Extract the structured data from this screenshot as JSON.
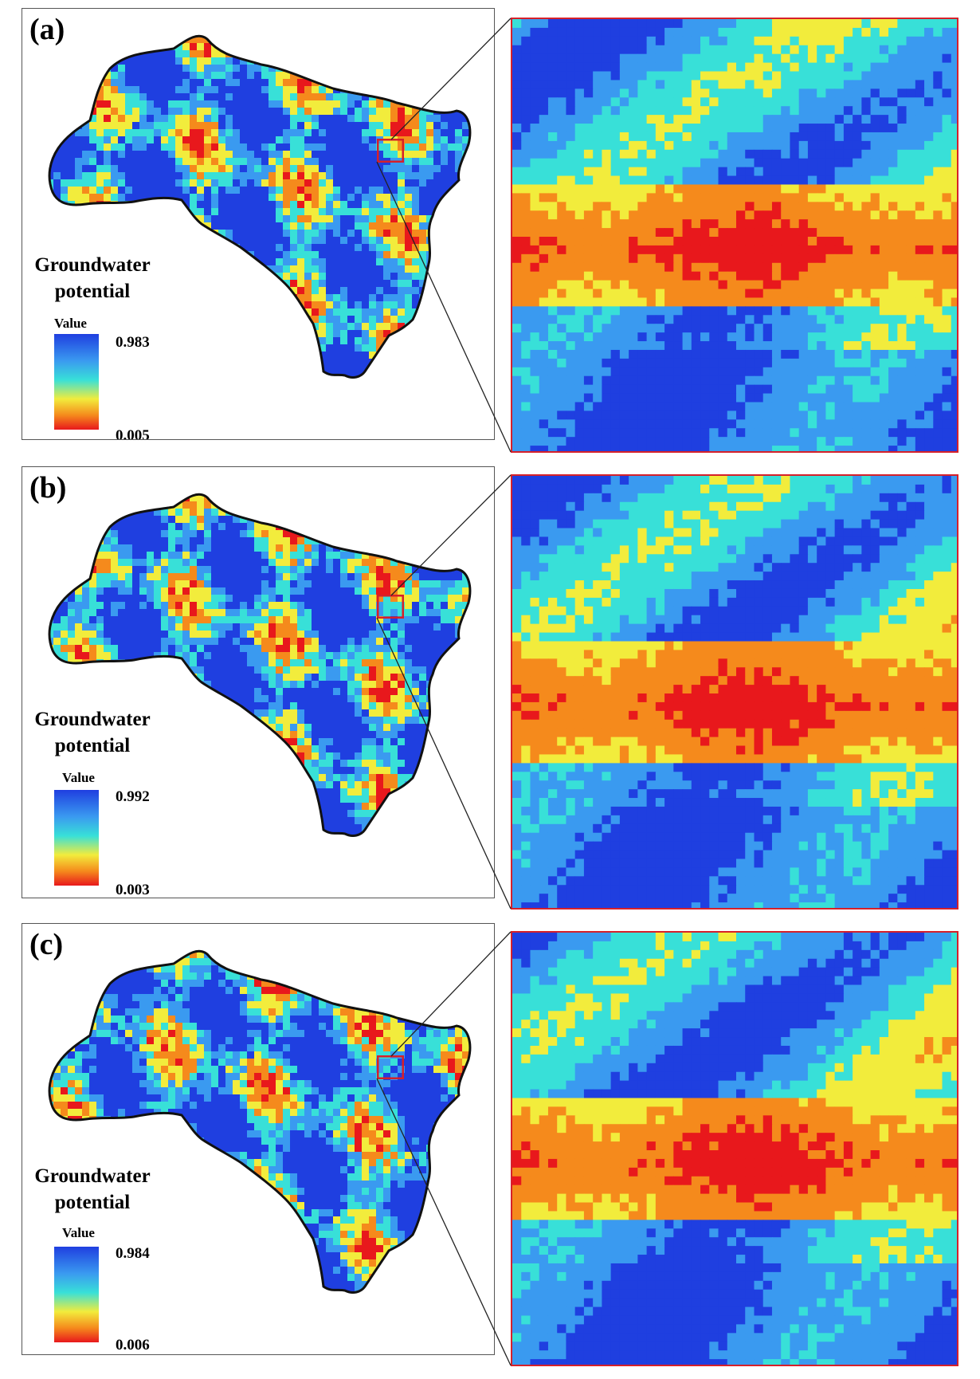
{
  "panels": [
    {
      "label": "(a)",
      "legend_title_1": "Groundwater",
      "legend_title_2": "potential",
      "legend_value_label": "Value",
      "max": "0.983",
      "min": "0.005"
    },
    {
      "label": "(b)",
      "legend_title_1": "Groundwater",
      "legend_title_2": "potential",
      "legend_value_label": "Value",
      "max": "0.992",
      "min": "0.003"
    },
    {
      "label": "(c)",
      "legend_title_1": "Groundwater",
      "legend_title_2": "potential",
      "legend_value_label": "Value",
      "max": "0.984",
      "min": "0.006"
    }
  ],
  "colors": {
    "high": "#1f3fe0",
    "mid_high": "#3a9af0",
    "mid": "#38e0d8",
    "mid_low": "#f2ec3c",
    "low_mid": "#f58a1c",
    "low": "#e8181c",
    "zoom_box": "#d6202a"
  },
  "map_icon": "watershed-raster-map"
}
